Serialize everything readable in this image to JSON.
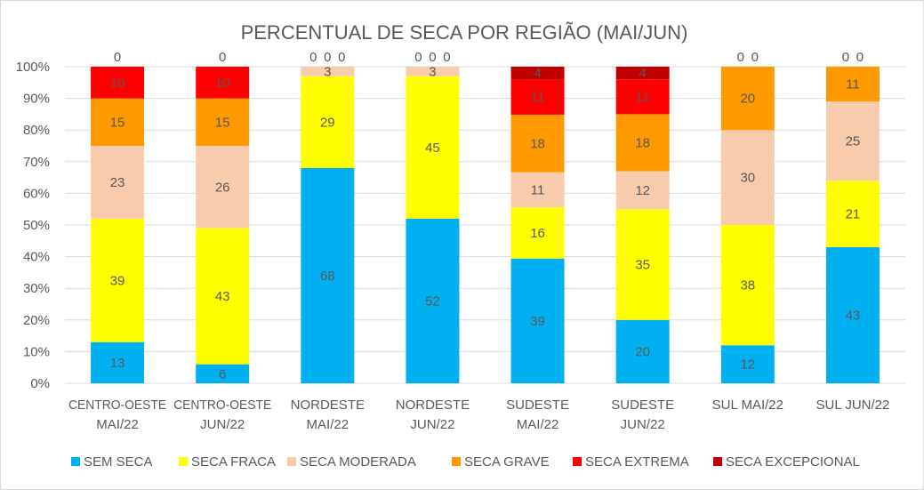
{
  "chart_data": {
    "type": "bar",
    "stacked": "percent",
    "title": "PERCENTUAL DE SECA POR REGIÃO (MAI/JUN)",
    "xlabel": "",
    "ylabel": "",
    "ylim": [
      0,
      100
    ],
    "yticks": [
      "0%",
      "10%",
      "20%",
      "30%",
      "40%",
      "50%",
      "60%",
      "70%",
      "80%",
      "90%",
      "100%"
    ],
    "grid": true,
    "legend": "bottom",
    "categories": [
      [
        "CENTRO-OESTE",
        "MAI/22"
      ],
      [
        "CENTRO-OESTE",
        "JUN/22"
      ],
      [
        "NORDESTE",
        "MAI/22"
      ],
      [
        "NORDESTE",
        "JUN/22"
      ],
      [
        "SUDESTE",
        "MAI/22"
      ],
      [
        "SUDESTE",
        "JUN/22"
      ],
      [
        "SUL MAI/22"
      ],
      [
        "SUL JUN/22"
      ]
    ],
    "series": [
      {
        "name": "SEM SECA",
        "color": "#00b0f0",
        "values": [
          13,
          6,
          68,
          52,
          39,
          20,
          12,
          43
        ]
      },
      {
        "name": "SECA FRACA",
        "color": "#ffff00",
        "values": [
          39,
          43,
          29,
          45,
          16,
          35,
          38,
          21
        ]
      },
      {
        "name": "SECA MODERADA",
        "color": "#f8cbad",
        "values": [
          23,
          26,
          3,
          3,
          11,
          12,
          30,
          25
        ]
      },
      {
        "name": "SECA GRAVE",
        "color": "#ff9900",
        "values": [
          15,
          15,
          0,
          0,
          18,
          18,
          20,
          11
        ]
      },
      {
        "name": "SECA EXTREMA",
        "color": "#ff0000",
        "values": [
          10,
          10,
          0,
          0,
          11,
          11,
          0,
          0
        ]
      },
      {
        "name": "SECA EXCEPCIONAL",
        "color": "#c00000",
        "values": [
          0,
          0,
          0,
          0,
          4,
          4,
          0,
          0
        ]
      }
    ]
  }
}
